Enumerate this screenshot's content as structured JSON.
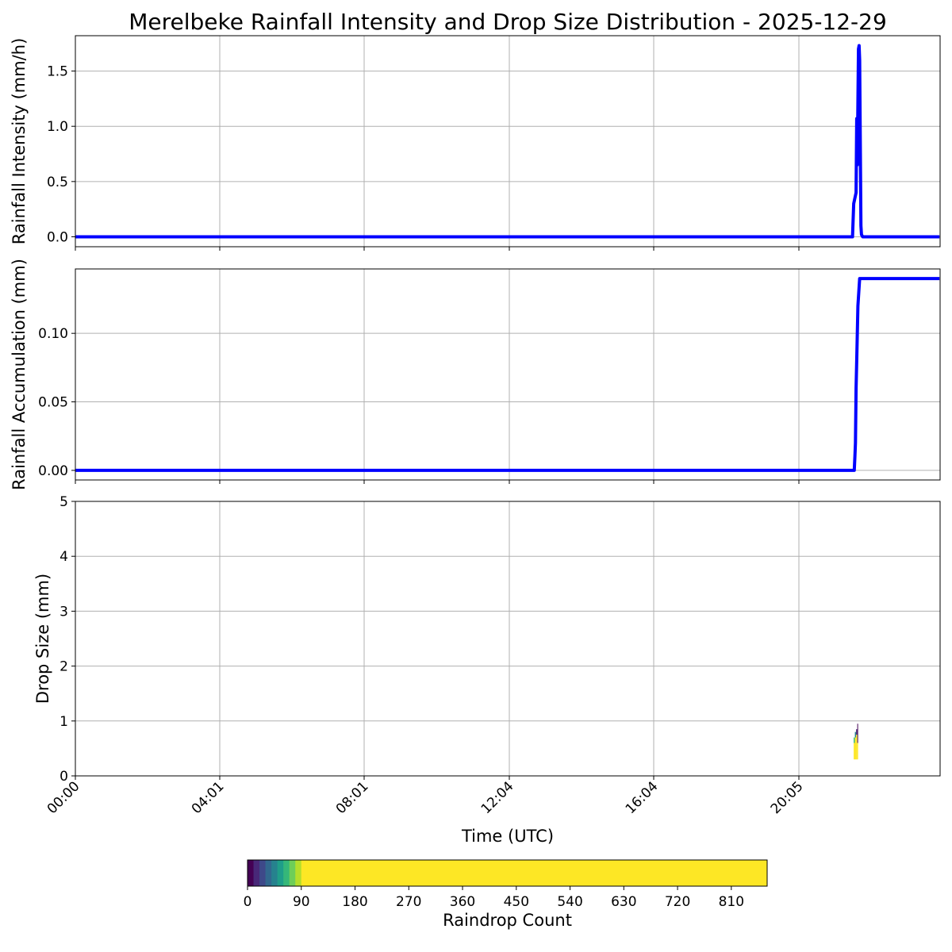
{
  "title": "Merelbeke Rainfall Intensity and Drop Size Distribution - 2025-12-29",
  "xlabel": "Time (UTC)",
  "x_tick_labels": [
    "00:00",
    "04:01",
    "08:01",
    "12:04",
    "16:04",
    "20:05"
  ],
  "colors": {
    "line": "#0000ff",
    "grid": "#b0b0b0"
  },
  "chart_data": [
    {
      "type": "line",
      "ylabel": "Rainfall Intensity (mm/h)",
      "ylim": [
        -0.09,
        1.82
      ],
      "yticks": [
        0.0,
        0.5,
        1.0,
        1.5
      ],
      "ytick_labels": [
        "0.0",
        "0.5",
        "1.0",
        "1.5"
      ],
      "grid": true,
      "series": [
        {
          "x": [
            "00:00",
            "21:35",
            "21:37",
            "21:41",
            "21:42",
            "21:43",
            "21:45",
            "21:46",
            "21:47",
            "21:49",
            "21:50",
            "21:52",
            "24:00"
          ],
          "y": [
            0.0,
            0.0,
            0.3,
            0.4,
            1.07,
            0.65,
            1.7,
            1.73,
            1.6,
            0.1,
            0.02,
            0.0,
            0.0
          ]
        }
      ]
    },
    {
      "type": "line",
      "ylabel": "Rainfall Accumulation (mm)",
      "ylim": [
        -0.007,
        0.147
      ],
      "yticks": [
        0.0,
        0.05,
        0.1
      ],
      "ytick_labels": [
        "0.00",
        "0.05",
        "0.10"
      ],
      "grid": true,
      "series": [
        {
          "x": [
            "00:00",
            "21:38",
            "21:39",
            "21:40",
            "21:41",
            "21:42",
            "21:44",
            "21:47",
            "24:00"
          ],
          "y": [
            0.0,
            0.0,
            0.01,
            0.02,
            0.06,
            0.08,
            0.12,
            0.14,
            0.14
          ]
        }
      ]
    },
    {
      "type": "heatmap",
      "ylabel": "Drop Size (mm)",
      "ylim": [
        0,
        5
      ],
      "yticks": [
        0,
        1,
        2,
        3,
        4,
        5
      ],
      "ytick_labels": [
        "0",
        "1",
        "2",
        "3",
        "4",
        "5"
      ],
      "grid": true,
      "cells": [
        {
          "t0": "21:37",
          "t1": "21:39",
          "d0": 0.3,
          "d1": 0.6,
          "count": 900
        },
        {
          "t0": "21:37",
          "t1": "21:39",
          "d0": 0.6,
          "d1": 0.7,
          "count": 60
        },
        {
          "t0": "21:39",
          "t1": "21:41",
          "d0": 0.3,
          "d1": 0.7,
          "count": 900
        },
        {
          "t0": "21:39",
          "t1": "21:41",
          "d0": 0.7,
          "d1": 0.8,
          "count": 40
        },
        {
          "t0": "21:41",
          "t1": "21:43",
          "d0": 0.3,
          "d1": 0.75,
          "count": 900
        },
        {
          "t0": "21:41",
          "t1": "21:43",
          "d0": 0.75,
          "d1": 0.85,
          "count": 15
        },
        {
          "t0": "21:43",
          "t1": "21:44",
          "d0": 0.3,
          "d1": 0.6,
          "count": 900
        },
        {
          "t0": "21:43",
          "t1": "21:44",
          "d0": 0.6,
          "d1": 0.95,
          "count": 5
        }
      ],
      "colorbar": {
        "label": "Raindrop Count",
        "range": [
          0,
          870
        ],
        "ticks": [
          0,
          90,
          180,
          270,
          360,
          450,
          540,
          630,
          720,
          810
        ]
      }
    }
  ]
}
